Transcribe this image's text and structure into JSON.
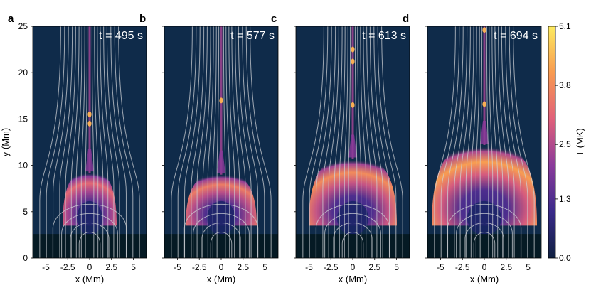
{
  "chart_data": {
    "type": "heatmap",
    "panels": [
      {
        "letter": "a",
        "time_label": "t = 495 s",
        "time_s": 495
      },
      {
        "letter": "b",
        "time_label": "t = 577 s",
        "time_s": 577
      },
      {
        "letter": "c",
        "time_label": "t = 613 s",
        "time_s": 613
      },
      {
        "letter": "d",
        "time_label": "t = 694 s",
        "time_s": 694
      }
    ],
    "xlabel": "x (Mm)",
    "ylabel": "y (Mm)",
    "xlim": [
      -6.5,
      6.5
    ],
    "ylim": [
      0,
      25
    ],
    "xticks": [
      -5,
      -2.5,
      0,
      2.5,
      5
    ],
    "xtick_labels": [
      "-5",
      "-2.5",
      "0",
      "2.5",
      "5"
    ],
    "yticks": [
      0,
      5,
      10,
      15,
      20,
      25
    ],
    "ytick_labels": [
      "0",
      "5",
      "10",
      "15",
      "20",
      "25"
    ],
    "colorbar": {
      "label": "T (MK)",
      "ticks": [
        0.0,
        1.3,
        2.5,
        3.8,
        5.1
      ],
      "tick_labels": [
        "0.0",
        "1.3",
        "2.5",
        "3.8",
        "5.1"
      ],
      "range": [
        0.0,
        5.1
      ],
      "colors": [
        "#0e2040",
        "#3a2a8a",
        "#8a3a9a",
        "#e0607a",
        "#f89a50",
        "#fdeb60"
      ]
    },
    "features": [
      {
        "panel": "a",
        "loop_top_y_Mm": 9.5,
        "plasmoids_y_Mm": [
          15.5,
          14.5
        ]
      },
      {
        "panel": "b",
        "loop_top_y_Mm": 9.3,
        "plasmoids_y_Mm": [
          17.0
        ]
      },
      {
        "panel": "c",
        "loop_top_y_Mm": 11.0,
        "plasmoids_y_Mm": [
          22.5,
          21.2,
          16.5
        ]
      },
      {
        "panel": "d",
        "loop_top_y_Mm": 12.5,
        "plasmoids_y_Mm": [
          24.6,
          16.6
        ]
      }
    ],
    "background_color": "#0f2b4a",
    "chromosphere_color": "#051a24",
    "fieldline_color": "#cfd2d6"
  }
}
